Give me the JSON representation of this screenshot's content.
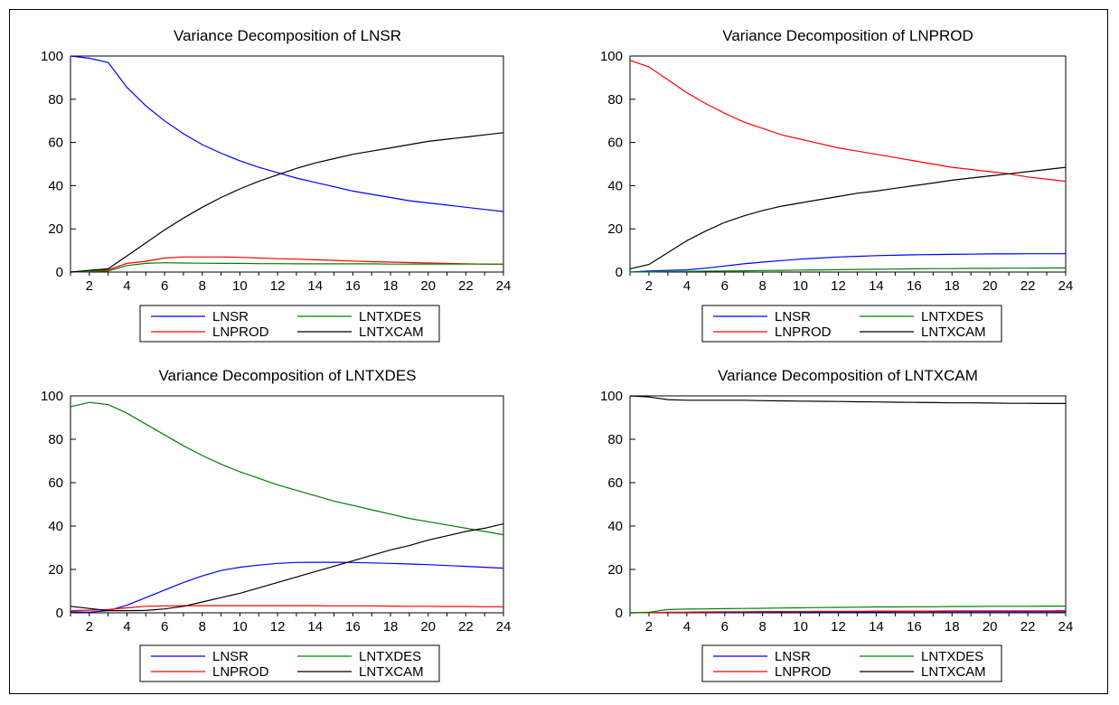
{
  "chart_data": [
    {
      "type": "line",
      "title": "Variance Decomposition of LNSR",
      "x": [
        1,
        2,
        3,
        4,
        5,
        6,
        7,
        8,
        9,
        10,
        11,
        12,
        13,
        14,
        15,
        16,
        17,
        18,
        19,
        20,
        21,
        22,
        23,
        24
      ],
      "ylim": [
        0,
        100
      ],
      "yticks": [
        "0",
        "20",
        "40",
        "60",
        "80",
        "100"
      ],
      "xticks": [
        "2",
        "4",
        "6",
        "8",
        "10",
        "12",
        "14",
        "16",
        "18",
        "20",
        "22",
        "24"
      ],
      "series": [
        {
          "name": "LNSR",
          "color": "#0000ff",
          "values": [
            100,
            99,
            97,
            85.5,
            77,
            70,
            64,
            59,
            55,
            51.5,
            48.5,
            46,
            43.5,
            41.5,
            39.5,
            37.5,
            36,
            34.5,
            33,
            32,
            31,
            30,
            29,
            28
          ]
        },
        {
          "name": "LNPROD",
          "color": "#ff0000",
          "values": [
            0,
            0.3,
            1,
            4,
            5,
            6.5,
            7,
            7,
            7,
            6.8,
            6.5,
            6.2,
            6,
            5.7,
            5.4,
            5.1,
            4.8,
            4.6,
            4.4,
            4.2,
            4,
            3.8,
            3.7,
            3.6
          ]
        },
        {
          "name": "LNTXDES",
          "color": "#008000",
          "values": [
            0,
            0.2,
            0.5,
            3,
            4,
            4.3,
            4.2,
            4.1,
            4,
            4,
            3.9,
            3.9,
            3.8,
            3.8,
            3.8,
            3.8,
            3.8,
            3.7,
            3.7,
            3.7,
            3.7,
            3.7,
            3.7,
            3.7
          ]
        },
        {
          "name": "LNTXCAM",
          "color": "#000000",
          "values": [
            0,
            0.8,
            1.5,
            7.5,
            13.5,
            19.5,
            25,
            30,
            34.5,
            38.5,
            42,
            45,
            48,
            50.5,
            52.5,
            54.5,
            56,
            57.5,
            59,
            60.5,
            61.5,
            62.5,
            63.5,
            64.5
          ]
        }
      ],
      "legend_position": "bottom"
    },
    {
      "type": "line",
      "title": "Variance Decomposition of LNPROD",
      "x": [
        1,
        2,
        3,
        4,
        5,
        6,
        7,
        8,
        9,
        10,
        11,
        12,
        13,
        14,
        15,
        16,
        17,
        18,
        19,
        20,
        21,
        22,
        23,
        24
      ],
      "ylim": [
        0,
        100
      ],
      "yticks": [
        "0",
        "20",
        "40",
        "60",
        "80",
        "100"
      ],
      "xticks": [
        "2",
        "4",
        "6",
        "8",
        "10",
        "12",
        "14",
        "16",
        "18",
        "20",
        "22",
        "24"
      ],
      "series": [
        {
          "name": "LNSR",
          "color": "#0000ff",
          "values": [
            0,
            0.5,
            0.8,
            1,
            1.8,
            2.8,
            3.8,
            4.6,
            5.3,
            6,
            6.5,
            7,
            7.3,
            7.6,
            7.8,
            8,
            8.1,
            8.2,
            8.3,
            8.4,
            8.4,
            8.5,
            8.5,
            8.5
          ]
        },
        {
          "name": "LNPROD",
          "color": "#ff0000",
          "values": [
            98,
            95,
            89,
            83,
            78,
            73.5,
            69.5,
            66.5,
            63.5,
            61.5,
            59.5,
            57.5,
            56,
            54.5,
            53,
            51.5,
            50,
            48.5,
            47.5,
            46.5,
            45.5,
            44,
            43,
            42
          ]
        },
        {
          "name": "LNTXDES",
          "color": "#008000",
          "values": [
            0,
            0.1,
            0.2,
            0.3,
            0.4,
            0.5,
            0.6,
            0.7,
            0.8,
            0.9,
            1,
            1.1,
            1.2,
            1.3,
            1.4,
            1.5,
            1.6,
            1.6,
            1.7,
            1.7,
            1.8,
            1.8,
            1.9,
            1.9
          ]
        },
        {
          "name": "LNTXCAM",
          "color": "#000000",
          "values": [
            1.5,
            3.5,
            9,
            14.5,
            19,
            23,
            26,
            28.5,
            30.5,
            32,
            33.5,
            35,
            36.5,
            37.5,
            38.8,
            40,
            41.2,
            42.5,
            43.5,
            44.5,
            45.5,
            46.5,
            47.5,
            48.5
          ]
        }
      ],
      "legend_position": "bottom"
    },
    {
      "type": "line",
      "title": "Variance Decomposition of LNTXDES",
      "x": [
        1,
        2,
        3,
        4,
        5,
        6,
        7,
        8,
        9,
        10,
        11,
        12,
        13,
        14,
        15,
        16,
        17,
        18,
        19,
        20,
        21,
        22,
        23,
        24
      ],
      "ylim": [
        0,
        100
      ],
      "yticks": [
        "0",
        "20",
        "40",
        "60",
        "80",
        "100"
      ],
      "xticks": [
        "2",
        "4",
        "6",
        "8",
        "10",
        "12",
        "14",
        "16",
        "18",
        "20",
        "22",
        "24"
      ],
      "series": [
        {
          "name": "LNSR",
          "color": "#0000ff",
          "values": [
            0.5,
            0.3,
            1,
            3.5,
            7,
            10.5,
            14,
            17,
            19.5,
            21,
            22,
            22.8,
            23.2,
            23.3,
            23.3,
            23.2,
            23,
            22.8,
            22.5,
            22.2,
            21.8,
            21.4,
            21,
            20.6
          ]
        },
        {
          "name": "LNPROD",
          "color": "#ff0000",
          "values": [
            1,
            1.2,
            1.5,
            2.3,
            3,
            3.2,
            3.3,
            3.3,
            3.3,
            3.3,
            3.3,
            3.3,
            3.3,
            3.3,
            3.2,
            3.2,
            3.2,
            3.1,
            3,
            3,
            2.9,
            2.9,
            2.8,
            2.8
          ]
        },
        {
          "name": "LNTXDES",
          "color": "#008000",
          "values": [
            95,
            97,
            96,
            92,
            87,
            82,
            77,
            72.5,
            68.5,
            65,
            62,
            59,
            56.5,
            54,
            51.5,
            49.5,
            47.5,
            45.5,
            43.5,
            42,
            40.5,
            39,
            37.5,
            36
          ]
        },
        {
          "name": "LNTXCAM",
          "color": "#000000",
          "values": [
            3,
            2,
            1,
            1,
            1.1,
            1.8,
            3,
            5,
            7,
            9,
            11.5,
            14,
            16.5,
            19,
            21.5,
            24,
            26.5,
            29,
            31,
            33.5,
            35.5,
            37.5,
            39,
            41
          ]
        }
      ],
      "legend_position": "bottom"
    },
    {
      "type": "line",
      "title": "Variance Decomposition of LNTXCAM",
      "x": [
        1,
        2,
        3,
        4,
        5,
        6,
        7,
        8,
        9,
        10,
        11,
        12,
        13,
        14,
        15,
        16,
        17,
        18,
        19,
        20,
        21,
        22,
        23,
        24
      ],
      "ylim": [
        0,
        100
      ],
      "yticks": [
        "0",
        "20",
        "40",
        "60",
        "80",
        "100"
      ],
      "xticks": [
        "2",
        "4",
        "6",
        "8",
        "10",
        "12",
        "14",
        "16",
        "18",
        "20",
        "22",
        "24"
      ],
      "series": [
        {
          "name": "LNSR",
          "color": "#0000ff",
          "values": [
            0,
            0.1,
            0.2,
            0.2,
            0.3,
            0.3,
            0.3,
            0.3,
            0.4,
            0.4,
            0.4,
            0.4,
            0.4,
            0.4,
            0.5,
            0.5,
            0.5,
            0.5,
            0.5,
            0.5,
            0.5,
            0.5,
            0.5,
            0.5
          ]
        },
        {
          "name": "LNPROD",
          "color": "#ff0000",
          "values": [
            0,
            0.1,
            0.2,
            0.3,
            0.4,
            0.5,
            0.5,
            0.6,
            0.6,
            0.6,
            0.7,
            0.7,
            0.7,
            0.8,
            0.8,
            0.8,
            0.8,
            0.9,
            0.9,
            0.9,
            0.9,
            0.9,
            0.9,
            1
          ]
        },
        {
          "name": "LNTXDES",
          "color": "#008000",
          "values": [
            0,
            0.3,
            1.5,
            1.7,
            1.8,
            1.9,
            2,
            2.1,
            2.2,
            2.3,
            2.4,
            2.5,
            2.6,
            2.7,
            2.7,
            2.8,
            2.8,
            2.9,
            2.9,
            3,
            3,
            3,
            3.1,
            3.1
          ]
        },
        {
          "name": "LNTXCAM",
          "color": "#000000",
          "values": [
            100,
            99.5,
            98.3,
            98,
            98,
            98,
            98,
            97.8,
            97.7,
            97.6,
            97.5,
            97.4,
            97.3,
            97.2,
            97.1,
            97,
            96.9,
            96.8,
            96.8,
            96.7,
            96.6,
            96.6,
            96.5,
            96.5
          ]
        }
      ],
      "legend_position": "bottom"
    }
  ]
}
